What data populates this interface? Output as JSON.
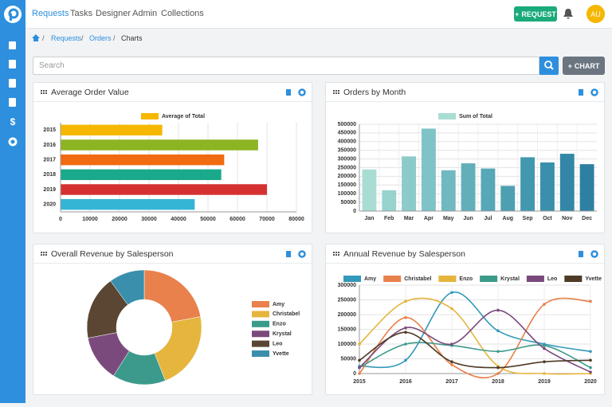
{
  "nav": {
    "links": [
      "Requests",
      "Tasks",
      "Designer",
      "Admin",
      "Collections"
    ],
    "request_button": "REQUEST",
    "avatar": "AU"
  },
  "breadcrumb": [
    "Requests",
    "Orders",
    "Charts"
  ],
  "search": {
    "placeholder": "Search"
  },
  "chart_button": "CHART",
  "chart_data": [
    {
      "type": "bar",
      "orientation": "horizontal",
      "title": "Average Order Value",
      "categories": [
        "2015",
        "2016",
        "2017",
        "2018",
        "2019",
        "2020"
      ],
      "series": [
        {
          "name": "Average of Total",
          "color": "#f5b700",
          "colors": [
            "#f5b700",
            "#8cb423",
            "#f26a12",
            "#1aa98b",
            "#d63131",
            "#35b5d6"
          ],
          "values": [
            34500,
            67000,
            55500,
            54500,
            70000,
            45500
          ]
        }
      ],
      "xlim": [
        0,
        80000
      ],
      "xticks": [
        0,
        10000,
        20000,
        30000,
        40000,
        50000,
        60000,
        70000,
        80000
      ],
      "grid": true
    },
    {
      "type": "bar",
      "title": "Orders by Month",
      "categories": [
        "Jan",
        "Feb",
        "Mar",
        "Apr",
        "May",
        "Jun",
        "Jul",
        "Aug",
        "Sep",
        "Oct",
        "Nov",
        "Dec"
      ],
      "series": [
        {
          "name": "Sum of Total",
          "color": "#a9ddd4",
          "colors": [
            "#a9ddd4",
            "#99d3ce",
            "#8ccbc9",
            "#7fc3c6",
            "#70b9c0",
            "#62afba",
            "#57a7b6",
            "#4da0b2",
            "#4298ae",
            "#3a8faa",
            "#3387a6",
            "#2e80a2"
          ],
          "values": [
            240000,
            120000,
            315000,
            475000,
            235000,
            275000,
            245000,
            145000,
            310000,
            280000,
            330000,
            270000
          ]
        }
      ],
      "ylim": [
        0,
        500000
      ],
      "yticks": [
        0,
        50000,
        100000,
        150000,
        200000,
        250000,
        300000,
        350000,
        400000,
        450000,
        500000
      ],
      "grid": true
    },
    {
      "type": "pie",
      "donut": true,
      "title": "Overall Revenue by Salesperson",
      "categories": [
        "Amy",
        "Christabel",
        "Enzo",
        "Krystal",
        "Leo",
        "Yvette"
      ],
      "colors": [
        "#e8814b",
        "#e5b53d",
        "#3b9a8b",
        "#7b4a7c",
        "#5a4633",
        "#3a8fac"
      ],
      "values": [
        22,
        22,
        15,
        13,
        18,
        10
      ]
    },
    {
      "type": "line",
      "smooth": true,
      "title": "Annual Revenue by Salesperson",
      "categories": [
        "2015",
        "2016",
        "2017",
        "2018",
        "2019",
        "2020"
      ],
      "series": [
        {
          "name": "Amy",
          "color": "#3399bb",
          "values": [
            25000,
            45000,
            275000,
            145000,
            100000,
            75000
          ]
        },
        {
          "name": "Christabel",
          "color": "#e8814b",
          "values": [
            0,
            190000,
            30000,
            0,
            235000,
            245000
          ]
        },
        {
          "name": "Enzo",
          "color": "#e5b53d",
          "values": [
            100000,
            245000,
            220000,
            25000,
            0,
            0
          ]
        },
        {
          "name": "Krystal",
          "color": "#3b9a8b",
          "values": [
            20000,
            100000,
            95000,
            75000,
            95000,
            20000
          ]
        },
        {
          "name": "Leo",
          "color": "#7b4a7c",
          "values": [
            20000,
            155000,
            100000,
            215000,
            85000,
            5000
          ]
        },
        {
          "name": "Yvette",
          "color": "#4e3a26",
          "values": [
            45000,
            140000,
            40000,
            20000,
            40000,
            45000
          ]
        }
      ],
      "ylim": [
        0,
        300000
      ],
      "yticks": [
        0,
        50000,
        100000,
        150000,
        200000,
        250000,
        300000
      ],
      "grid": true
    }
  ]
}
